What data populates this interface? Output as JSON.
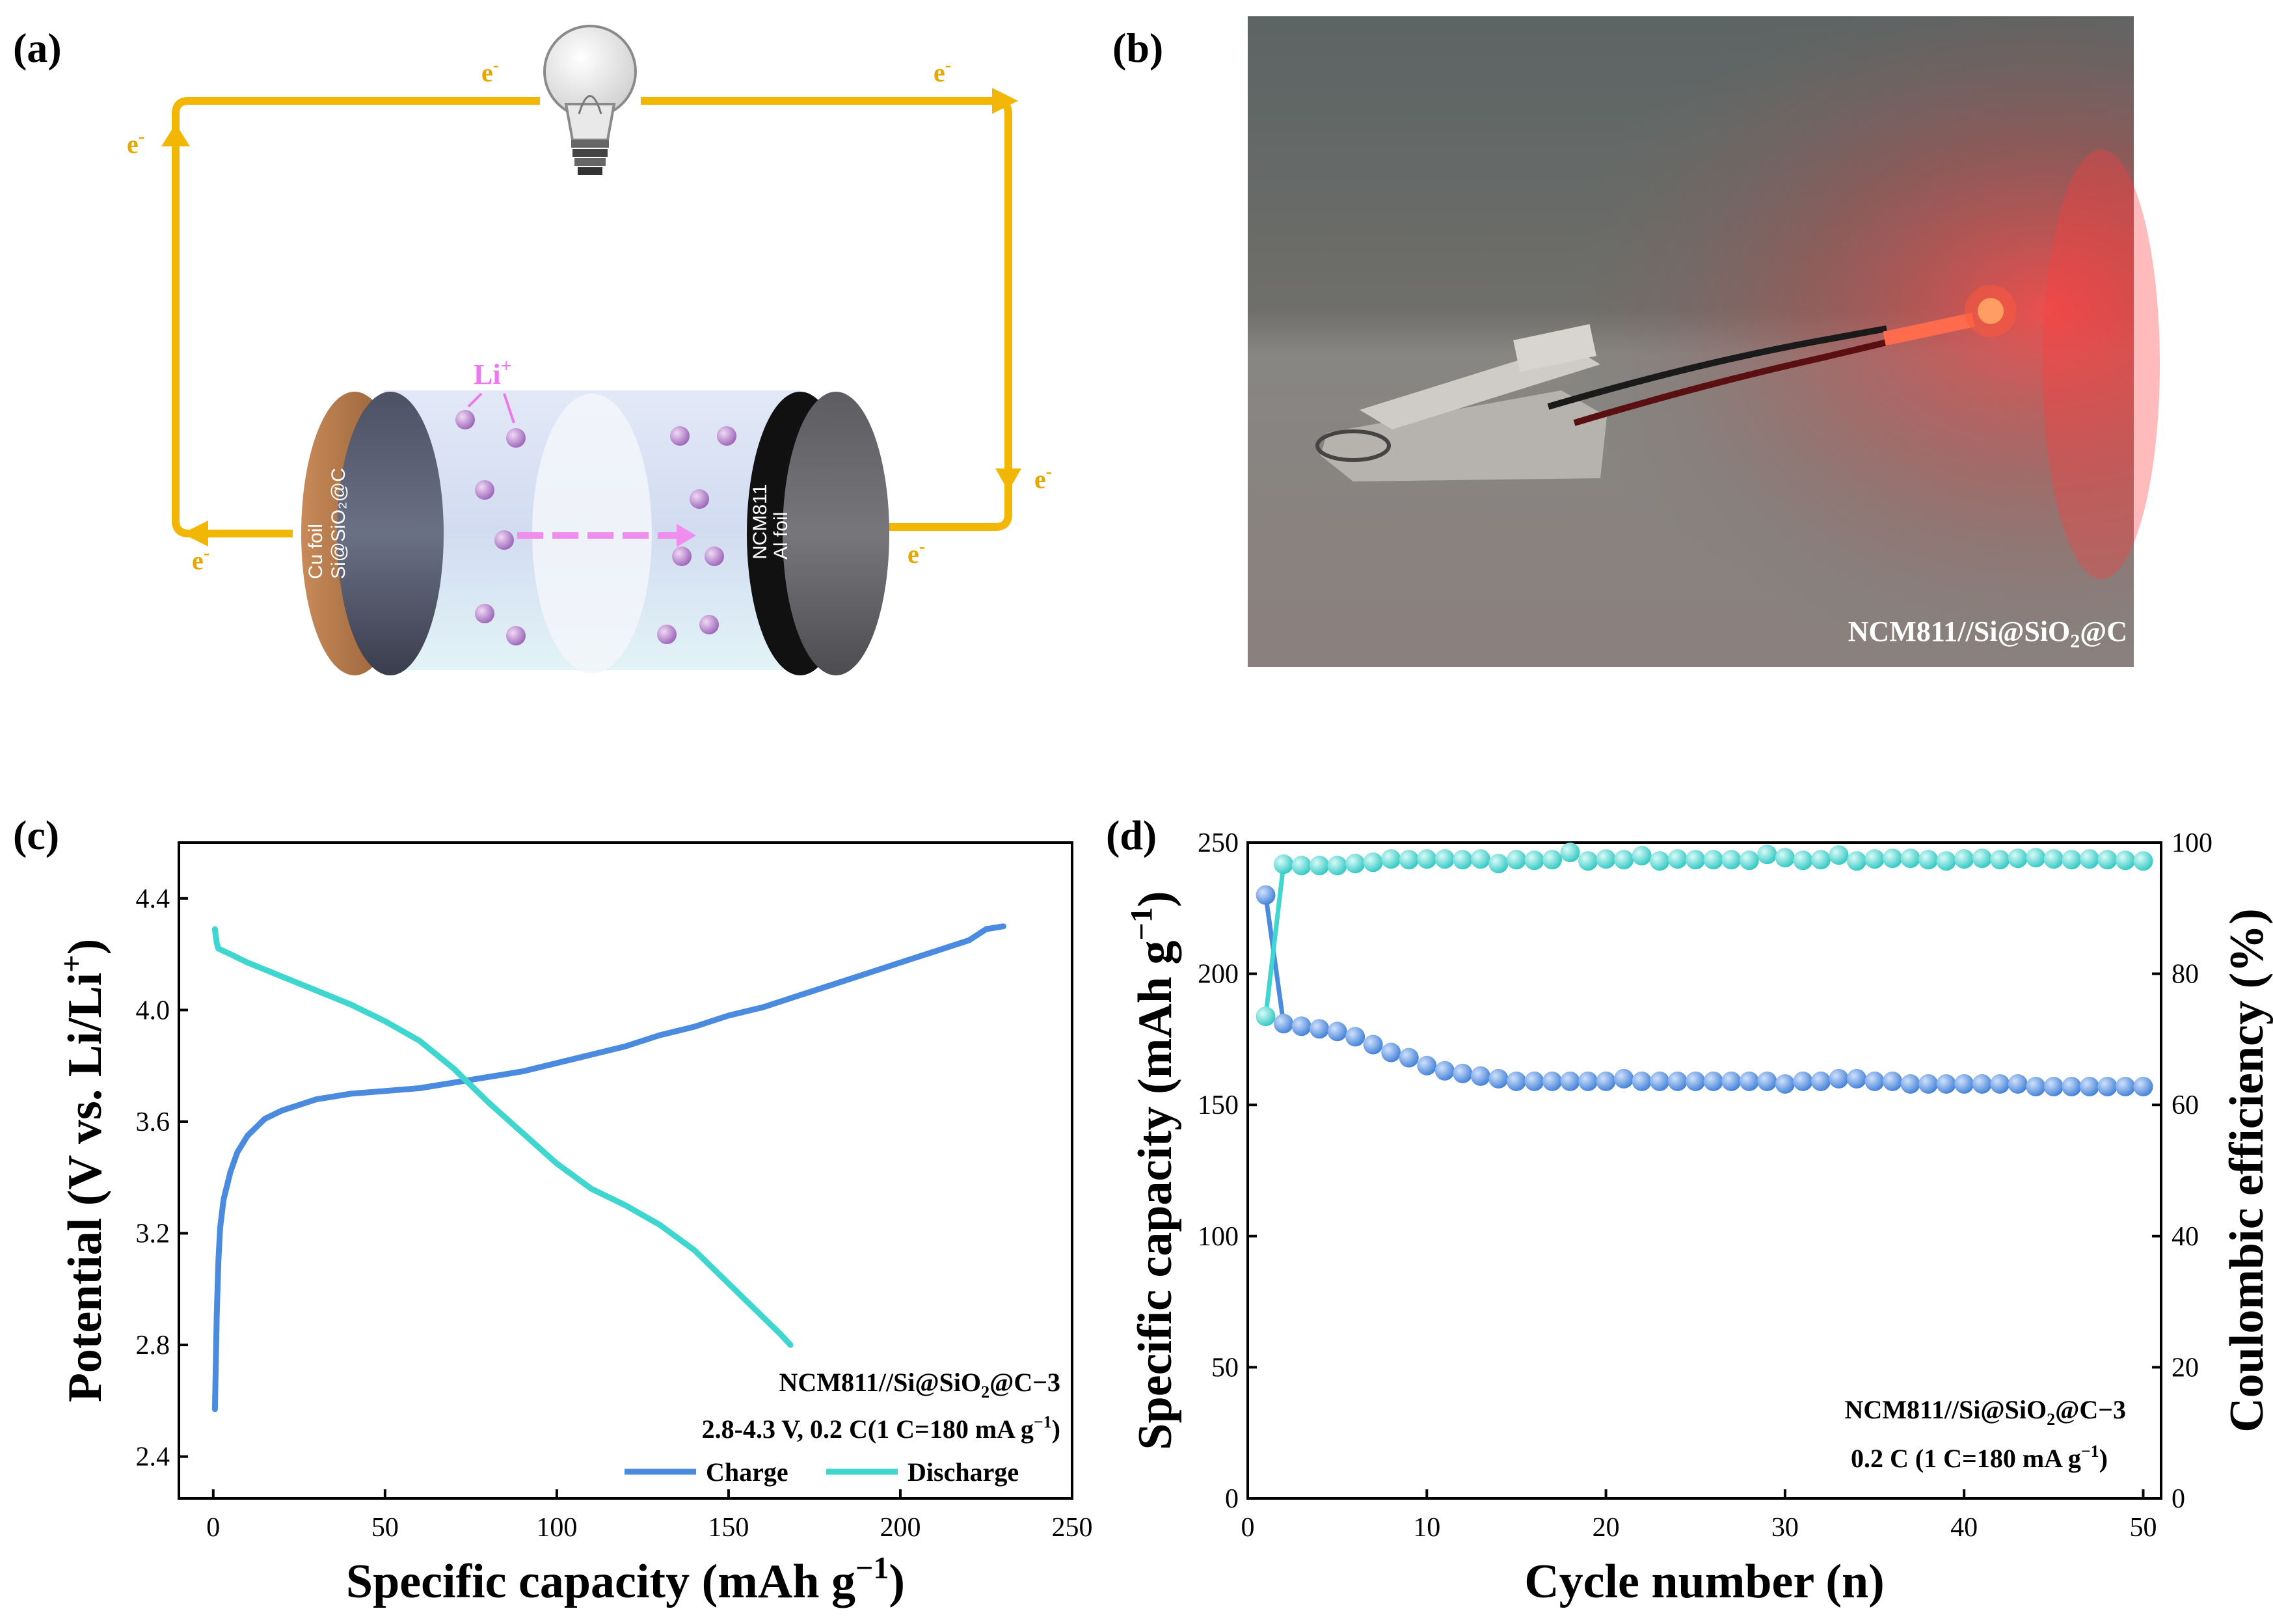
{
  "panels": {
    "a": {
      "label": "(a)",
      "electron": "e",
      "electron_sup": "-",
      "li_ion": "Li",
      "li_sup": "+",
      "anode_labels": [
        "Cu foil",
        "Si@SiO₂@C"
      ],
      "cathode_labels": [
        "NCM811",
        "Al foil"
      ]
    },
    "b": {
      "label": "(b)",
      "caption_main": "NCM811//Si@SiO",
      "caption_sub": "2",
      "caption_tail": "@C"
    },
    "c": {
      "label": "(c)"
    },
    "d": {
      "label": "(d)"
    }
  },
  "colors": {
    "charge": "#4a8be0",
    "discharge": "#3fd6d0",
    "wire": "#f2b705",
    "li": "#ee77ee",
    "photo_bg": "#6e7068",
    "led": "#ff3b3b"
  },
  "chart_data": [
    {
      "id": "c",
      "type": "line",
      "xlabel": "Specific capacity (mAh g⁻¹)",
      "ylabel": "Potential (V vs. Li/Li⁺)",
      "xlim": [
        -10,
        250
      ],
      "ylim": [
        2.25,
        4.6
      ],
      "xticks": [
        0,
        50,
        100,
        150,
        200,
        250
      ],
      "yticks": [
        2.4,
        2.8,
        3.2,
        3.6,
        4.0,
        4.4
      ],
      "ytick_labels": [
        "2.4",
        "2.8",
        "3.2",
        "3.6",
        "4.0",
        "4.4"
      ],
      "annotation_line1": "NCM811//Si@SiO₂@C−3",
      "annotation_line2": "2.8-4.3 V, 0.2 C(1 C=180 mA g⁻¹)",
      "legend_position": "bottom-right",
      "series": [
        {
          "name": "Charge",
          "x": [
            0.5,
            1,
            1.5,
            2,
            3,
            5,
            7,
            10,
            15,
            20,
            30,
            40,
            50,
            60,
            70,
            80,
            90,
            100,
            110,
            120,
            130,
            140,
            150,
            160,
            170,
            180,
            190,
            200,
            210,
            220,
            225,
            230
          ],
          "y": [
            2.57,
            2.9,
            3.1,
            3.22,
            3.32,
            3.42,
            3.49,
            3.55,
            3.61,
            3.64,
            3.68,
            3.7,
            3.71,
            3.72,
            3.74,
            3.76,
            3.78,
            3.81,
            3.84,
            3.87,
            3.91,
            3.94,
            3.98,
            4.01,
            4.05,
            4.09,
            4.13,
            4.17,
            4.21,
            4.25,
            4.29,
            4.3
          ]
        },
        {
          "name": "Discharge",
          "x": [
            0.5,
            1,
            1.5,
            5,
            10,
            20,
            30,
            40,
            50,
            60,
            70,
            80,
            90,
            100,
            110,
            120,
            130,
            140,
            150,
            160,
            165,
            168
          ],
          "y": [
            4.29,
            4.24,
            4.22,
            4.2,
            4.17,
            4.12,
            4.07,
            4.02,
            3.96,
            3.89,
            3.79,
            3.67,
            3.56,
            3.45,
            3.36,
            3.3,
            3.23,
            3.14,
            3.02,
            2.9,
            2.84,
            2.8
          ]
        }
      ]
    },
    {
      "id": "d",
      "type": "scatter",
      "xlabel": "Cycle number (n)",
      "ylabel": "Specific capacity (mAh g⁻¹)",
      "y2label": "Coulombic efficiency (%)",
      "xlim": [
        0,
        51
      ],
      "ylim": [
        0,
        250
      ],
      "y2lim": [
        0,
        100
      ],
      "xticks": [
        0,
        10,
        20,
        30,
        40,
        50
      ],
      "yticks": [
        0,
        50,
        100,
        150,
        200,
        250
      ],
      "y2ticks": [
        0,
        20,
        40,
        60,
        80,
        100
      ],
      "annotation_line1": "NCM811//Si@SiO₂@C−3",
      "annotation_line2": "0.2 C (1 C=180 mA g⁻¹)",
      "series": [
        {
          "name": "Specific capacity",
          "axis": "left",
          "x": [
            1,
            2,
            3,
            4,
            5,
            6,
            7,
            8,
            9,
            10,
            11,
            12,
            13,
            14,
            15,
            16,
            17,
            18,
            19,
            20,
            21,
            22,
            23,
            24,
            25,
            26,
            27,
            28,
            29,
            30,
            31,
            32,
            33,
            34,
            35,
            36,
            37,
            38,
            39,
            40,
            41,
            42,
            43,
            44,
            45,
            46,
            47,
            48,
            49,
            50
          ],
          "y": [
            230,
            181,
            180,
            179,
            178,
            176,
            173,
            170,
            168,
            165,
            163,
            162,
            161,
            160,
            159,
            159,
            159,
            159,
            159,
            159,
            160,
            159,
            159,
            159,
            159,
            159,
            159,
            159,
            159,
            158,
            159,
            159,
            160,
            160,
            159,
            159,
            158,
            158,
            158,
            158,
            158,
            158,
            158,
            157,
            157,
            157,
            157,
            157,
            157,
            157
          ]
        },
        {
          "name": "Coulombic efficiency",
          "axis": "right",
          "x": [
            1,
            2,
            3,
            4,
            5,
            6,
            7,
            8,
            9,
            10,
            11,
            12,
            13,
            14,
            15,
            16,
            17,
            18,
            19,
            20,
            21,
            22,
            23,
            24,
            25,
            26,
            27,
            28,
            29,
            30,
            31,
            32,
            33,
            34,
            35,
            36,
            37,
            38,
            39,
            40,
            41,
            42,
            43,
            44,
            45,
            46,
            47,
            48,
            49,
            50
          ],
          "y": [
            73.5,
            96.7,
            96.5,
            96.5,
            96.5,
            96.8,
            97.0,
            97.5,
            97.4,
            97.5,
            97.5,
            97.4,
            97.5,
            96.8,
            97.4,
            97.3,
            97.4,
            98.5,
            97.2,
            97.5,
            97.4,
            98.0,
            97.2,
            97.5,
            97.4,
            97.4,
            97.4,
            97.3,
            98.2,
            97.7,
            97.3,
            97.4,
            98.1,
            97.2,
            97.5,
            97.6,
            97.6,
            97.4,
            97.2,
            97.5,
            97.6,
            97.4,
            97.6,
            97.7,
            97.5,
            97.4,
            97.5,
            97.4,
            97.3,
            97.2
          ]
        }
      ]
    }
  ],
  "legend": {
    "charge": "Charge",
    "discharge": "Discharge"
  }
}
